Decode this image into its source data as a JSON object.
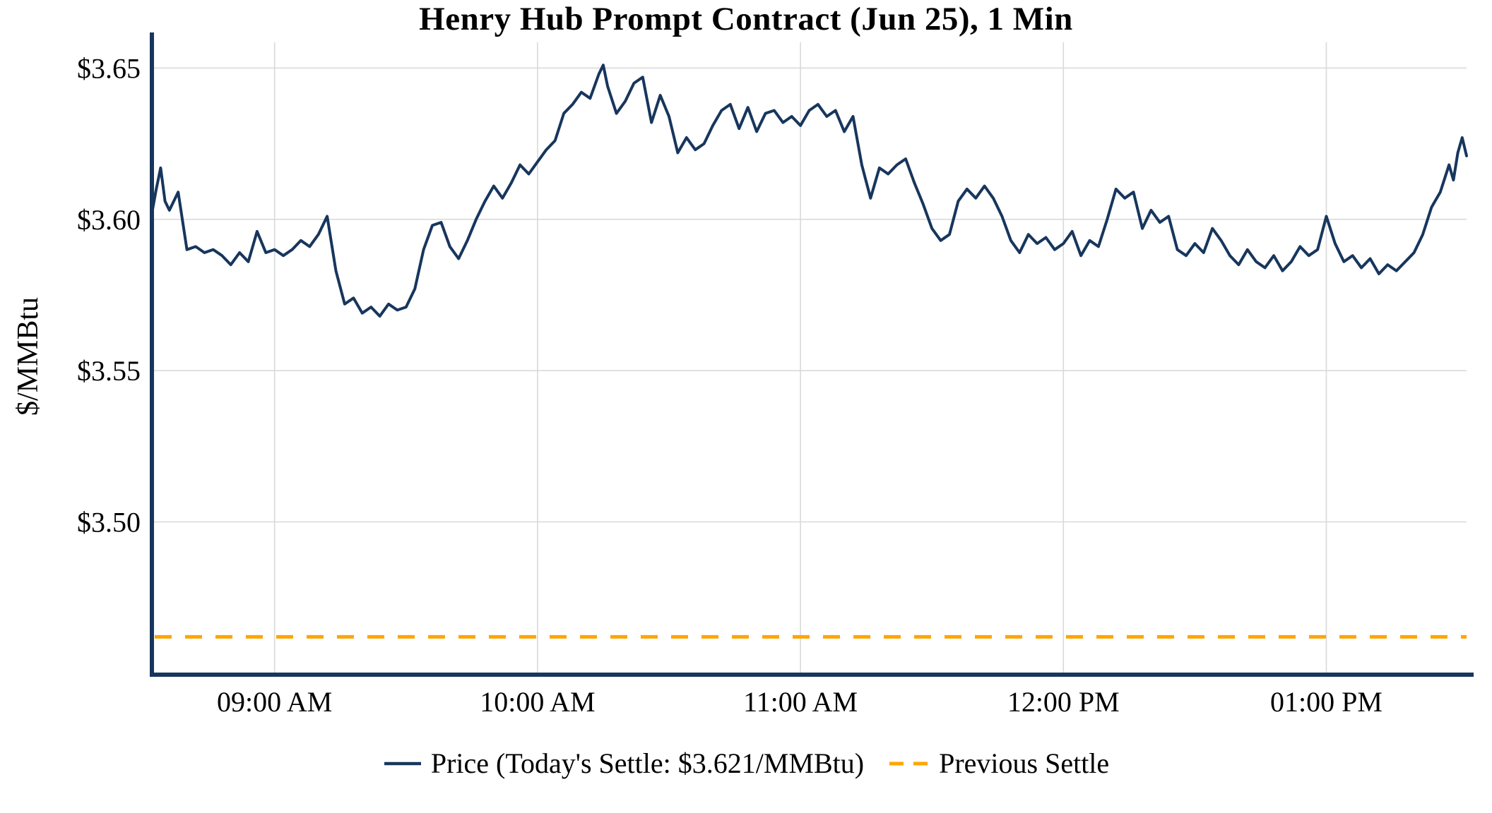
{
  "colors": {
    "price_line": "#17365d",
    "previous_settle": "#FFA500",
    "grid": "#d9d9d9",
    "axis": "#17365d",
    "text": "#000000",
    "background": "#ffffff"
  },
  "chart_data": {
    "type": "line",
    "title": "Henry Hub Prompt Contract (Jun 25), 1 Min",
    "ylabel": "$/MMBtu",
    "xlabel": "",
    "grid": true,
    "legend_position": "bottom",
    "x_unit": "minutes_since_midnight",
    "x_range": [
      512,
      812
    ],
    "y_range": [
      3.4495,
      3.6585
    ],
    "x_ticks": [
      {
        "value": 540,
        "label": "09:00 AM"
      },
      {
        "value": 600,
        "label": "10:00 AM"
      },
      {
        "value": 660,
        "label": "11:00 AM"
      },
      {
        "value": 720,
        "label": "12:00 PM"
      },
      {
        "value": 780,
        "label": "01:00 PM"
      }
    ],
    "y_ticks": [
      {
        "value": 3.5,
        "label": "$3.50"
      },
      {
        "value": 3.55,
        "label": "$3.55"
      },
      {
        "value": 3.6,
        "label": "$3.60"
      },
      {
        "value": 3.65,
        "label": "$3.65"
      }
    ],
    "todays_settle": 3.621,
    "previous_settle": 3.462,
    "series": [
      {
        "name": "Price",
        "type": "line",
        "color": "#17365d",
        "points": [
          [
            512,
            3.602
          ],
          [
            513,
            3.61
          ],
          [
            514,
            3.617
          ],
          [
            515,
            3.606
          ],
          [
            516,
            3.603
          ],
          [
            518,
            3.609
          ],
          [
            520,
            3.59
          ],
          [
            522,
            3.591
          ],
          [
            524,
            3.589
          ],
          [
            526,
            3.59
          ],
          [
            528,
            3.588
          ],
          [
            530,
            3.585
          ],
          [
            532,
            3.589
          ],
          [
            534,
            3.586
          ],
          [
            536,
            3.596
          ],
          [
            538,
            3.589
          ],
          [
            540,
            3.59
          ],
          [
            542,
            3.588
          ],
          [
            544,
            3.59
          ],
          [
            546,
            3.593
          ],
          [
            548,
            3.591
          ],
          [
            550,
            3.595
          ],
          [
            552,
            3.601
          ],
          [
            554,
            3.583
          ],
          [
            556,
            3.572
          ],
          [
            558,
            3.574
          ],
          [
            560,
            3.569
          ],
          [
            562,
            3.571
          ],
          [
            564,
            3.568
          ],
          [
            566,
            3.572
          ],
          [
            568,
            3.57
          ],
          [
            570,
            3.571
          ],
          [
            572,
            3.577
          ],
          [
            574,
            3.59
          ],
          [
            576,
            3.598
          ],
          [
            578,
            3.599
          ],
          [
            580,
            3.591
          ],
          [
            582,
            3.587
          ],
          [
            584,
            3.593
          ],
          [
            586,
            3.6
          ],
          [
            588,
            3.606
          ],
          [
            590,
            3.611
          ],
          [
            592,
            3.607
          ],
          [
            594,
            3.612
          ],
          [
            596,
            3.618
          ],
          [
            598,
            3.615
          ],
          [
            600,
            3.619
          ],
          [
            602,
            3.623
          ],
          [
            604,
            3.626
          ],
          [
            606,
            3.635
          ],
          [
            608,
            3.638
          ],
          [
            610,
            3.642
          ],
          [
            612,
            3.64
          ],
          [
            614,
            3.648
          ],
          [
            615,
            3.651
          ],
          [
            616,
            3.644
          ],
          [
            618,
            3.635
          ],
          [
            620,
            3.639
          ],
          [
            622,
            3.645
          ],
          [
            624,
            3.647
          ],
          [
            626,
            3.632
          ],
          [
            628,
            3.641
          ],
          [
            630,
            3.634
          ],
          [
            632,
            3.622
          ],
          [
            634,
            3.627
          ],
          [
            636,
            3.623
          ],
          [
            638,
            3.625
          ],
          [
            640,
            3.631
          ],
          [
            642,
            3.636
          ],
          [
            644,
            3.638
          ],
          [
            646,
            3.63
          ],
          [
            648,
            3.637
          ],
          [
            650,
            3.629
          ],
          [
            652,
            3.635
          ],
          [
            654,
            3.636
          ],
          [
            656,
            3.632
          ],
          [
            658,
            3.634
          ],
          [
            660,
            3.631
          ],
          [
            662,
            3.636
          ],
          [
            664,
            3.638
          ],
          [
            666,
            3.634
          ],
          [
            668,
            3.636
          ],
          [
            670,
            3.629
          ],
          [
            672,
            3.634
          ],
          [
            674,
            3.618
          ],
          [
            676,
            3.607
          ],
          [
            678,
            3.617
          ],
          [
            680,
            3.615
          ],
          [
            682,
            3.618
          ],
          [
            684,
            3.62
          ],
          [
            686,
            3.612
          ],
          [
            688,
            3.605
          ],
          [
            690,
            3.597
          ],
          [
            692,
            3.593
          ],
          [
            694,
            3.595
          ],
          [
            696,
            3.606
          ],
          [
            698,
            3.61
          ],
          [
            700,
            3.607
          ],
          [
            702,
            3.611
          ],
          [
            704,
            3.607
          ],
          [
            706,
            3.601
          ],
          [
            708,
            3.593
          ],
          [
            710,
            3.589
          ],
          [
            712,
            3.595
          ],
          [
            714,
            3.592
          ],
          [
            716,
            3.594
          ],
          [
            718,
            3.59
          ],
          [
            720,
            3.592
          ],
          [
            722,
            3.596
          ],
          [
            724,
            3.588
          ],
          [
            726,
            3.593
          ],
          [
            728,
            3.591
          ],
          [
            730,
            3.6
          ],
          [
            732,
            3.61
          ],
          [
            734,
            3.607
          ],
          [
            736,
            3.609
          ],
          [
            738,
            3.597
          ],
          [
            740,
            3.603
          ],
          [
            742,
            3.599
          ],
          [
            744,
            3.601
          ],
          [
            746,
            3.59
          ],
          [
            748,
            3.588
          ],
          [
            750,
            3.592
          ],
          [
            752,
            3.589
          ],
          [
            754,
            3.597
          ],
          [
            756,
            3.593
          ],
          [
            758,
            3.588
          ],
          [
            760,
            3.585
          ],
          [
            762,
            3.59
          ],
          [
            764,
            3.586
          ],
          [
            766,
            3.584
          ],
          [
            768,
            3.588
          ],
          [
            770,
            3.583
          ],
          [
            772,
            3.586
          ],
          [
            774,
            3.591
          ],
          [
            776,
            3.588
          ],
          [
            778,
            3.59
          ],
          [
            780,
            3.601
          ],
          [
            782,
            3.592
          ],
          [
            784,
            3.586
          ],
          [
            786,
            3.588
          ],
          [
            788,
            3.584
          ],
          [
            790,
            3.587
          ],
          [
            792,
            3.582
          ],
          [
            794,
            3.585
          ],
          [
            796,
            3.583
          ],
          [
            798,
            3.586
          ],
          [
            800,
            3.589
          ],
          [
            802,
            3.595
          ],
          [
            804,
            3.604
          ],
          [
            806,
            3.609
          ],
          [
            808,
            3.618
          ],
          [
            809,
            3.613
          ],
          [
            810,
            3.622
          ],
          [
            811,
            3.627
          ],
          [
            812,
            3.621
          ]
        ]
      },
      {
        "name": "Previous Settle",
        "type": "hline",
        "color": "#FFA500",
        "dashed": true,
        "value": 3.462
      }
    ],
    "legend": [
      {
        "label": "Price (Today's Settle: $3.621/MMBtu)",
        "color": "#17365d",
        "style": "solid"
      },
      {
        "label": "Previous Settle",
        "color": "#FFA500",
        "style": "dashed"
      }
    ]
  }
}
